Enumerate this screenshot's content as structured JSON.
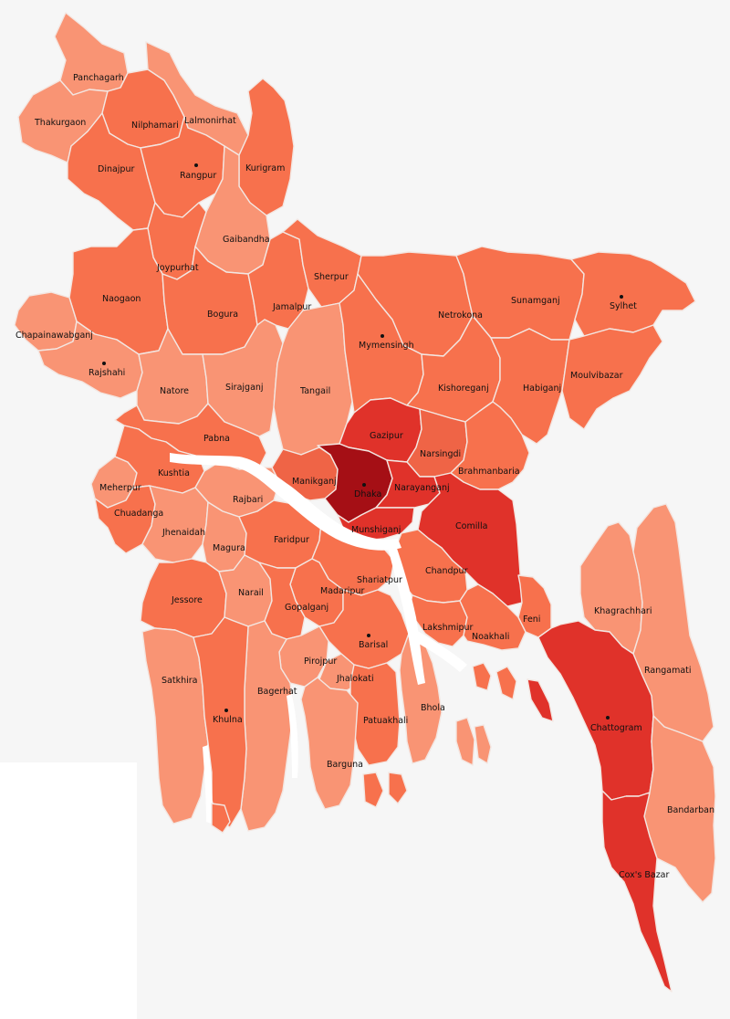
{
  "map": {
    "colors": {
      "level_1": "#f99474",
      "level_2": "#f7714d",
      "level_3": "#ef6446",
      "level_4": "#e0322a",
      "level_5": "#c61b1e",
      "level_6": "#a50f15",
      "background": "#f6f6f6",
      "river": "#ffffff"
    },
    "districts": [
      {
        "id": "panchagarh",
        "label": "Panchagarh",
        "level": 1
      },
      {
        "id": "thakurgaon",
        "label": "Thakurgaon",
        "level": 1
      },
      {
        "id": "nilphamari",
        "label": "Nilphamari",
        "level": 2
      },
      {
        "id": "lalmonirhat",
        "label": "Lalmonirhat",
        "level": 1
      },
      {
        "id": "dinajpur",
        "label": "Dinajpur",
        "level": 2
      },
      {
        "id": "rangpur",
        "label": "Rangpur",
        "level": 2
      },
      {
        "id": "kurigram",
        "label": "Kurigram",
        "level": 2
      },
      {
        "id": "gaibandha",
        "label": "Gaibandha",
        "level": 1
      },
      {
        "id": "joypurhat",
        "label": "Joypurhat",
        "level": 2
      },
      {
        "id": "naogaon",
        "label": "Naogaon",
        "level": 2
      },
      {
        "id": "bogura",
        "label": "Bogura",
        "level": 2
      },
      {
        "id": "jamalpur",
        "label": "Jamalpur",
        "level": 2
      },
      {
        "id": "sherpur",
        "label": "Sherpur",
        "level": 2
      },
      {
        "id": "netrokona",
        "label": "Netrokona",
        "level": 2
      },
      {
        "id": "sunamganj",
        "label": "Sunamganj",
        "level": 2
      },
      {
        "id": "sylhet",
        "label": "Sylhet",
        "level": 2
      },
      {
        "id": "chapainawabganj",
        "label": "Chapainawabganj",
        "level": 1
      },
      {
        "id": "rajshahi",
        "label": "Rajshahi",
        "level": 1
      },
      {
        "id": "natore",
        "label": "Natore",
        "level": 1
      },
      {
        "id": "sirajganj",
        "label": "Sirajganj",
        "level": 1
      },
      {
        "id": "tangail",
        "label": "Tangail",
        "level": 1
      },
      {
        "id": "mymensingh",
        "label": "Mymensingh",
        "level": 2
      },
      {
        "id": "kishoreganj",
        "label": "Kishoreganj",
        "level": 2
      },
      {
        "id": "habiganj",
        "label": "Habiganj",
        "level": 2
      },
      {
        "id": "moulvibazar",
        "label": "Moulvibazar",
        "level": 2
      },
      {
        "id": "pabna",
        "label": "Pabna",
        "level": 2
      },
      {
        "id": "gazipur",
        "label": "Gazipur",
        "level": 4
      },
      {
        "id": "narsingdi",
        "label": "Narsingdi",
        "level": 3
      },
      {
        "id": "brahmanbaria",
        "label": "Brahmanbaria",
        "level": 2
      },
      {
        "id": "meherpur",
        "label": "Meherpur",
        "level": 1
      },
      {
        "id": "kushtia",
        "label": "Kushtia",
        "level": 2
      },
      {
        "id": "manikganj",
        "label": "Manikganj",
        "level": 3
      },
      {
        "id": "dhaka",
        "label": "Dhaka",
        "level": 6
      },
      {
        "id": "narayanganj",
        "label": "Narayanganj",
        "level": 4
      },
      {
        "id": "chuadanga",
        "label": "Chuadanga",
        "level": 2
      },
      {
        "id": "rajbari",
        "label": "Rajbari",
        "level": 1
      },
      {
        "id": "munshiganj",
        "label": "Munshiganj",
        "level": 4
      },
      {
        "id": "comilla",
        "label": "Comilla",
        "level": 4
      },
      {
        "id": "jhenaidah",
        "label": "Jhenaidah",
        "level": 1
      },
      {
        "id": "magura",
        "label": "Magura",
        "level": 1
      },
      {
        "id": "faridpur",
        "label": "Faridpur",
        "level": 2
      },
      {
        "id": "shariatpur",
        "label": "Shariatpur",
        "level": 2
      },
      {
        "id": "chandpur",
        "label": "Chandpur",
        "level": 2
      },
      {
        "id": "khagrachhari",
        "label": "Khagrachhari",
        "level": 1
      },
      {
        "id": "jessore",
        "label": "Jessore",
        "level": 2
      },
      {
        "id": "narail",
        "label": "Narail",
        "level": 1
      },
      {
        "id": "madaripur",
        "label": "Madaripur",
        "level": 2
      },
      {
        "id": "gopalganj",
        "label": "Gopalganj",
        "level": 2
      },
      {
        "id": "lakshmipur",
        "label": "Lakshmipur",
        "level": 2
      },
      {
        "id": "noakhali",
        "label": "Noakhali",
        "level": 2
      },
      {
        "id": "feni",
        "label": "Feni",
        "level": 2
      },
      {
        "id": "barisal",
        "label": "Barisal",
        "level": 2
      },
      {
        "id": "pirojpur",
        "label": "Pirojpur",
        "level": 1
      },
      {
        "id": "jhalokati",
        "label": "Jhalokati",
        "level": 1
      },
      {
        "id": "satkhira",
        "label": "Satkhira",
        "level": 1
      },
      {
        "id": "bagerhat",
        "label": "Bagerhat",
        "level": 1
      },
      {
        "id": "rangamati",
        "label": "Rangamati",
        "level": 1
      },
      {
        "id": "bhola",
        "label": "Bhola",
        "level": 1
      },
      {
        "id": "patuakhali",
        "label": "Patuakhali",
        "level": 2
      },
      {
        "id": "khulna",
        "label": "Khulna",
        "level": 2
      },
      {
        "id": "chattogram",
        "label": "Chattogram",
        "level": 4
      },
      {
        "id": "barguna",
        "label": "Barguna",
        "level": 1
      },
      {
        "id": "bandarban",
        "label": "Bandarban",
        "level": 1
      },
      {
        "id": "coxs_bazar",
        "label": "Cox's Bazar",
        "level": 4
      }
    ]
  }
}
